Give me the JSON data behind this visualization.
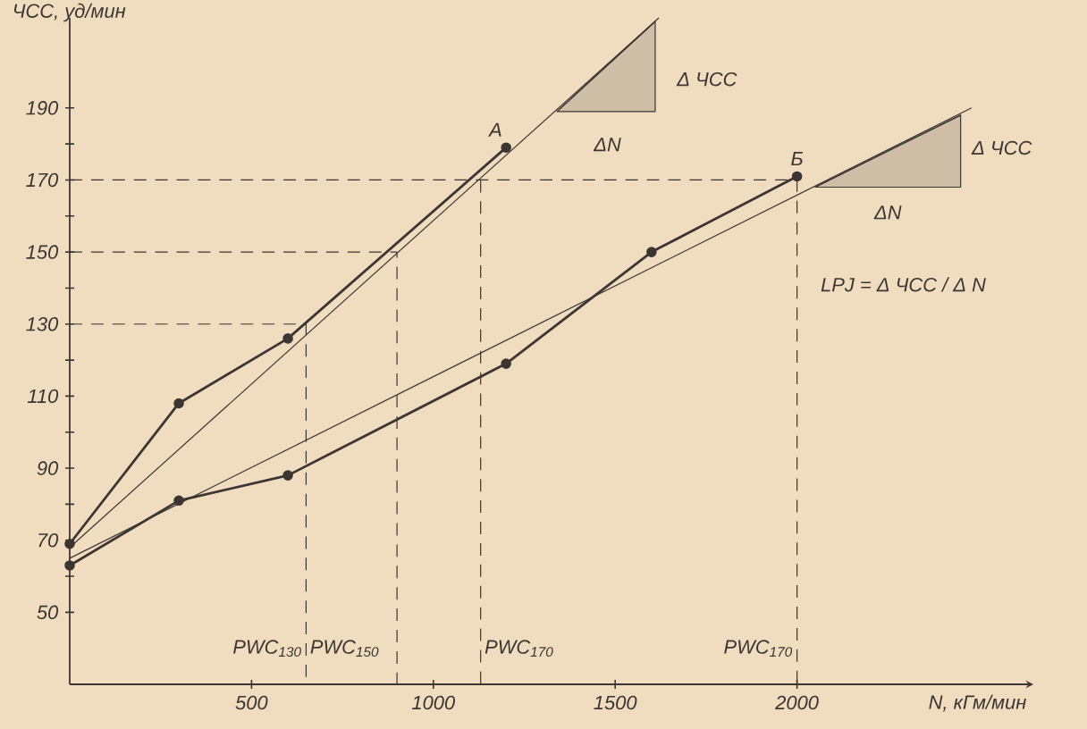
{
  "chart_data": {
    "type": "line",
    "xlabel": "N, кГм/мин",
    "ylabel": "ЧСС, уд/мин",
    "xlim": [
      0,
      2650
    ],
    "ylim": [
      30,
      215
    ],
    "xticks": [
      500,
      1000,
      1500,
      2000
    ],
    "yticks": [
      50,
      {
        "value": 60,
        "label": null
      },
      70,
      {
        "value": 80,
        "label": null
      },
      90,
      {
        "value": 100,
        "label": null
      },
      110,
      {
        "value": 120,
        "label": null
      },
      130,
      {
        "value": 140,
        "label": null
      },
      150,
      {
        "value": 160,
        "label": null
      },
      170,
      {
        "value": 180,
        "label": null
      },
      190
    ],
    "grid": false,
    "series": [
      {
        "x": [
          0,
          300,
          600,
          1200
        ],
        "values": [
          69,
          108,
          126,
          179
        ],
        "color": "#3b3632",
        "marker": "circle"
      },
      {
        "x": [
          0,
          1620
        ],
        "values": [
          68,
          215
        ],
        "color": "#3b3632",
        "marker": "none"
      },
      {
        "x": [
          0,
          300,
          600,
          1200,
          1600,
          2000
        ],
        "values": [
          63,
          81,
          88,
          119,
          150,
          171
        ],
        "color": "#3b3632",
        "marker": "circle"
      },
      {
        "x": [
          0,
          2480
        ],
        "values": [
          65,
          190
        ],
        "color": "#3b3632",
        "marker": "none"
      },
      {
        "x": [
          1340,
          1610
        ],
        "values": [
          189,
          214
        ],
        "lower": [
          189,
          189
        ],
        "upper": [
          189,
          214
        ],
        "color": "#3b3632",
        "marker": "none"
      },
      {
        "x": [
          2050,
          2450
        ],
        "values": [
          168,
          188
        ],
        "lower": [
          168,
          168
        ],
        "upper": [
          168,
          188
        ],
        "color": "#3b3632",
        "marker": "none"
      },
      {
        "x": [
          0,
          650,
          650
        ],
        "values": [
          130,
          130,
          30
        ],
        "color": "#3b3632",
        "marker": "none",
        "line_style": "dashed"
      },
      {
        "x": [
          0,
          900,
          900
        ],
        "values": [
          150,
          150,
          30
        ],
        "color": "#3b3632",
        "marker": "none",
        "line_style": "dashed"
      },
      {
        "x": [
          0,
          2000,
          2000
        ],
        "values": [
          170,
          170,
          30
        ],
        "color": "#3b3632",
        "marker": "none",
        "line_style": "dashed"
      },
      {
        "x": [
          1130,
          1130
        ],
        "values": [
          170,
          30
        ],
        "color": "#3b3632",
        "marker": "none",
        "line_style": "dashed"
      }
    ],
    "annotations": [
      {
        "text": "А",
        "x": 1200,
        "y": 179
      },
      {
        "text": "Б",
        "x": 2000,
        "y": 171
      },
      "Δ ЧСС",
      "ΔN",
      "Δ ЧСС",
      "ΔN",
      "LPJ = Δ ЧСС / Δ N",
      {
        "text": "PWC$_{130}$",
        "x": 650,
        "y": 40
      },
      {
        "text": "PWC$_{150}$",
        "x": 650,
        "y": 40
      },
      {
        "text": "PWC$_{170}$",
        "x": 1130,
        "y": 40
      },
      {
        "text": "PWC$_{170}$",
        "x": 2000,
        "y": 40
      }
    ]
  }
}
